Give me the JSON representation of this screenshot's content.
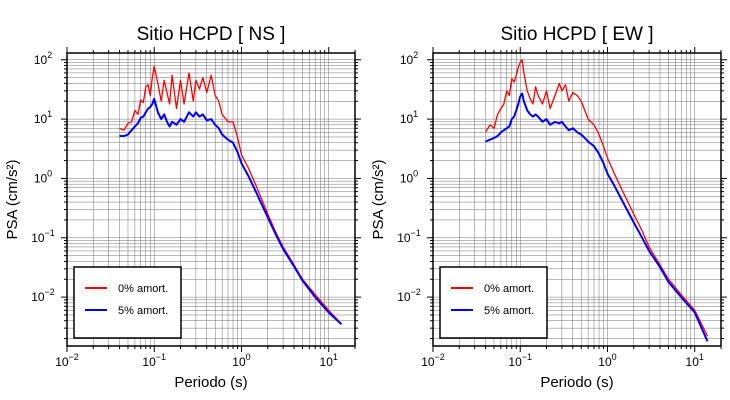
{
  "chart_data": [
    {
      "type": "line",
      "title": "Sitio HCPD [ NS ]",
      "xlabel": "Periodo (s)",
      "ylabel": "PSA (cm/s²)",
      "xscale": "log",
      "yscale": "log",
      "xlim": [
        0.01,
        20
      ],
      "ylim": [
        0.0015,
        130
      ],
      "xticks": [
        "10",
        "10",
        "10",
        "10"
      ],
      "xtick_exponents": [
        "−2",
        "−1",
        "0",
        "1"
      ],
      "yticks": [
        "10",
        "10",
        "10",
        "10",
        "10"
      ],
      "ytick_exponents": [
        "−2",
        "−1",
        "0",
        "1",
        "2"
      ],
      "grid": true,
      "legend_position": "bottom-left",
      "series": [
        {
          "name": "0% amort.",
          "color": "#ff0000",
          "x": [
            0.04,
            0.045,
            0.05,
            0.055,
            0.06,
            0.065,
            0.07,
            0.075,
            0.08,
            0.085,
            0.09,
            0.095,
            0.1,
            0.11,
            0.12,
            0.13,
            0.14,
            0.15,
            0.16,
            0.18,
            0.2,
            0.22,
            0.25,
            0.28,
            0.3,
            0.33,
            0.36,
            0.4,
            0.45,
            0.5,
            0.55,
            0.6,
            0.7,
            0.8,
            0.9,
            1.0,
            1.2,
            1.5,
            2.0,
            2.5,
            3.0,
            4.0,
            5.0,
            7.0,
            10.0,
            14.0
          ],
          "y": [
            7,
            6.5,
            8.5,
            9,
            14,
            12,
            21,
            19,
            35,
            38,
            25,
            50,
            78,
            40,
            20,
            45,
            28,
            18,
            55,
            15,
            45,
            18,
            60,
            20,
            45,
            32,
            50,
            28,
            55,
            25,
            20,
            12,
            9,
            9,
            5,
            2.5,
            1.5,
            0.7,
            0.25,
            0.12,
            0.07,
            0.035,
            0.02,
            0.011,
            0.006,
            0.0035
          ]
        },
        {
          "name": "5% amort.",
          "color": "#0000ff",
          "x": [
            0.04,
            0.045,
            0.05,
            0.055,
            0.06,
            0.065,
            0.07,
            0.075,
            0.08,
            0.085,
            0.09,
            0.095,
            0.1,
            0.11,
            0.12,
            0.13,
            0.14,
            0.15,
            0.16,
            0.18,
            0.2,
            0.22,
            0.25,
            0.28,
            0.3,
            0.33,
            0.36,
            0.4,
            0.45,
            0.5,
            0.55,
            0.6,
            0.7,
            0.8,
            0.9,
            1.0,
            1.2,
            1.5,
            2.0,
            2.5,
            3.0,
            4.0,
            5.0,
            7.0,
            10.0,
            14.0
          ],
          "y": [
            5.2,
            5.2,
            5.5,
            6.5,
            7.5,
            8.5,
            10.5,
            11,
            13,
            15,
            16,
            18,
            22,
            13,
            10,
            12,
            9,
            7.5,
            9,
            8,
            10,
            9,
            13,
            11,
            13,
            11,
            12,
            9.5,
            10,
            8,
            7,
            5.5,
            4.5,
            4,
            2.8,
            1.8,
            1.1,
            0.55,
            0.22,
            0.11,
            0.065,
            0.033,
            0.019,
            0.01,
            0.0055,
            0.0035
          ]
        }
      ]
    },
    {
      "type": "line",
      "title": "Sitio HCPD [ EW ]",
      "xlabel": "Periodo (s)",
      "ylabel": "PSA (cm/s²)",
      "xscale": "log",
      "yscale": "log",
      "xlim": [
        0.01,
        20
      ],
      "ylim": [
        0.0015,
        130
      ],
      "xticks": [
        "10",
        "10",
        "10",
        "10"
      ],
      "xtick_exponents": [
        "−2",
        "−1",
        "0",
        "1"
      ],
      "yticks": [
        "10",
        "10",
        "10",
        "10",
        "10"
      ],
      "ytick_exponents": [
        "−2",
        "−1",
        "0",
        "1",
        "2"
      ],
      "grid": true,
      "legend_position": "bottom-left",
      "series": [
        {
          "name": "0% amort.",
          "color": "#ff0000",
          "x": [
            0.04,
            0.045,
            0.05,
            0.055,
            0.06,
            0.065,
            0.07,
            0.075,
            0.08,
            0.085,
            0.09,
            0.095,
            0.1,
            0.105,
            0.11,
            0.12,
            0.13,
            0.14,
            0.15,
            0.16,
            0.18,
            0.2,
            0.22,
            0.25,
            0.28,
            0.3,
            0.33,
            0.36,
            0.4,
            0.45,
            0.5,
            0.55,
            0.6,
            0.7,
            0.8,
            0.9,
            1.0,
            1.2,
            1.5,
            2.0,
            2.5,
            3.0,
            4.0,
            5.0,
            7.0,
            10.0,
            14.0
          ],
          "y": [
            6,
            8,
            7,
            12,
            15,
            18,
            30,
            25,
            48,
            42,
            55,
            75,
            90,
            100,
            60,
            30,
            22,
            18,
            35,
            25,
            18,
            30,
            15,
            25,
            40,
            30,
            38,
            20,
            28,
            25,
            20,
            14,
            10,
            8,
            5.5,
            3.5,
            2.2,
            1.2,
            0.6,
            0.25,
            0.13,
            0.07,
            0.035,
            0.02,
            0.011,
            0.006,
            0.0022
          ]
        },
        {
          "name": "5% amort.",
          "color": "#0000ff",
          "x": [
            0.04,
            0.045,
            0.05,
            0.055,
            0.06,
            0.065,
            0.07,
            0.075,
            0.08,
            0.085,
            0.09,
            0.095,
            0.1,
            0.105,
            0.11,
            0.12,
            0.13,
            0.14,
            0.15,
            0.16,
            0.18,
            0.2,
            0.22,
            0.25,
            0.28,
            0.3,
            0.33,
            0.36,
            0.4,
            0.45,
            0.5,
            0.55,
            0.6,
            0.7,
            0.8,
            0.9,
            1.0,
            1.2,
            1.5,
            2.0,
            2.5,
            3.0,
            4.0,
            5.0,
            7.0,
            10.0,
            14.0
          ],
          "y": [
            4.2,
            4.5,
            4.8,
            5.2,
            6,
            6.5,
            7,
            7.5,
            10,
            11,
            14,
            18,
            24,
            27,
            20,
            14,
            12,
            11,
            12,
            11,
            9,
            10,
            8,
            9,
            8.5,
            9,
            7.5,
            6.5,
            7,
            6,
            5.5,
            4.8,
            4.2,
            3.5,
            2.6,
            1.8,
            1.2,
            0.75,
            0.4,
            0.18,
            0.1,
            0.06,
            0.032,
            0.018,
            0.01,
            0.0055,
            0.0018
          ]
        }
      ]
    }
  ]
}
